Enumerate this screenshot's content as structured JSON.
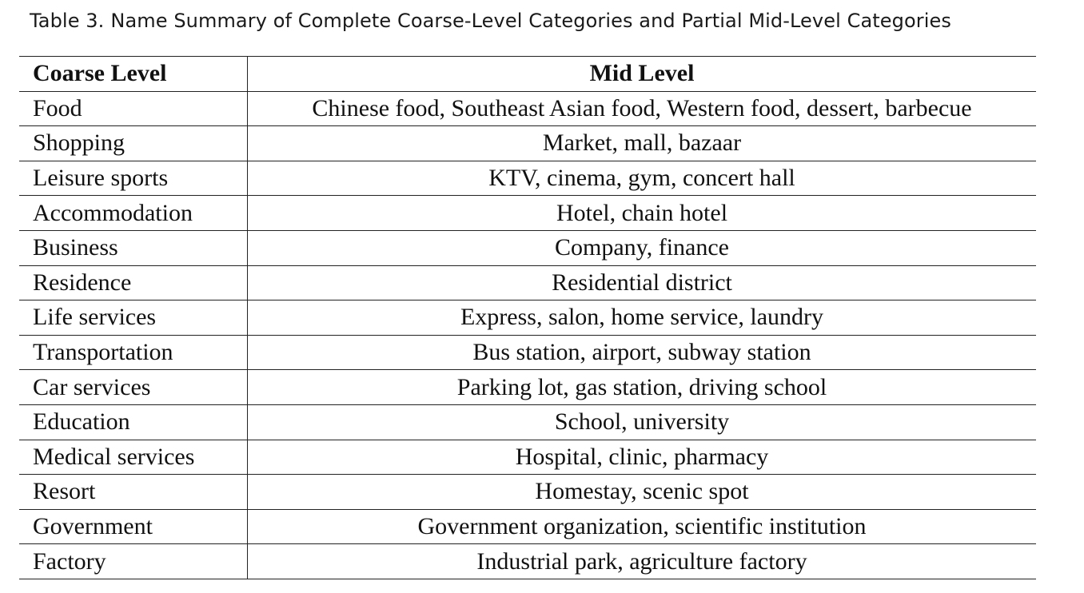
{
  "caption": {
    "label": "Table 3.",
    "text": "Name Summary of Complete Coarse-Level Categories and Partial Mid-Level Categories"
  },
  "table": {
    "headers": [
      "Coarse Level",
      "Mid Level"
    ],
    "rows": [
      [
        "Food",
        "Chinese food, Southeast Asian food, Western food, dessert, barbecue"
      ],
      [
        "Shopping",
        "Market, mall, bazaar"
      ],
      [
        "Leisure sports",
        "KTV, cinema, gym, concert hall"
      ],
      [
        "Accommodation",
        "Hotel, chain hotel"
      ],
      [
        "Business",
        "Company, finance"
      ],
      [
        "Residence",
        "Residential district"
      ],
      [
        "Life services",
        "Express, salon, home service, laundry"
      ],
      [
        "Transportation",
        "Bus station, airport, subway station"
      ],
      [
        "Car services",
        "Parking lot, gas station, driving school"
      ],
      [
        "Education",
        "School, university"
      ],
      [
        "Medical services",
        "Hospital, clinic, pharmacy"
      ],
      [
        "Resort",
        "Homestay, scenic spot"
      ],
      [
        "Government",
        "Government organization, scientific institution"
      ],
      [
        "Factory",
        "Industrial park, agriculture factory"
      ]
    ]
  }
}
